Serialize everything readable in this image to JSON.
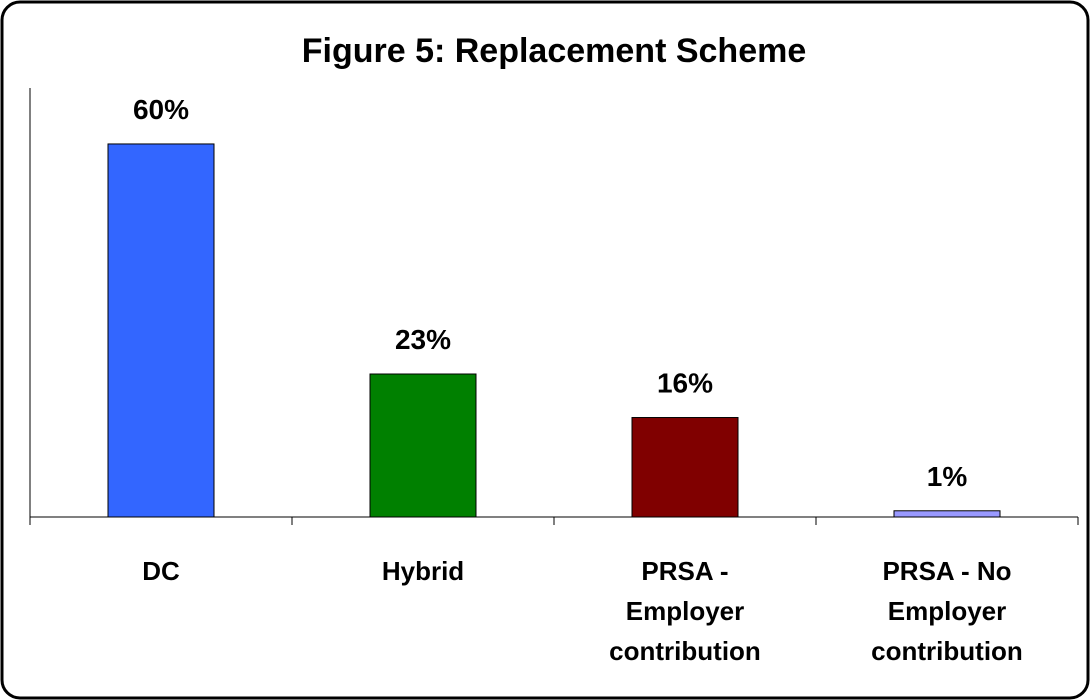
{
  "chart_data": {
    "type": "bar",
    "title": "Figure 5: Replacement Scheme",
    "categories": [
      "DC",
      "Hybrid",
      "PRSA - Employer contribution",
      "PRSA - No Employer contribution"
    ],
    "values": [
      60,
      23,
      16,
      1
    ],
    "value_labels": [
      "60%",
      "23%",
      "16%",
      "1%"
    ],
    "colors": [
      "#3366ff",
      "#008000",
      "#800000",
      "#9999ff"
    ],
    "ylim": [
      0,
      69
    ]
  }
}
